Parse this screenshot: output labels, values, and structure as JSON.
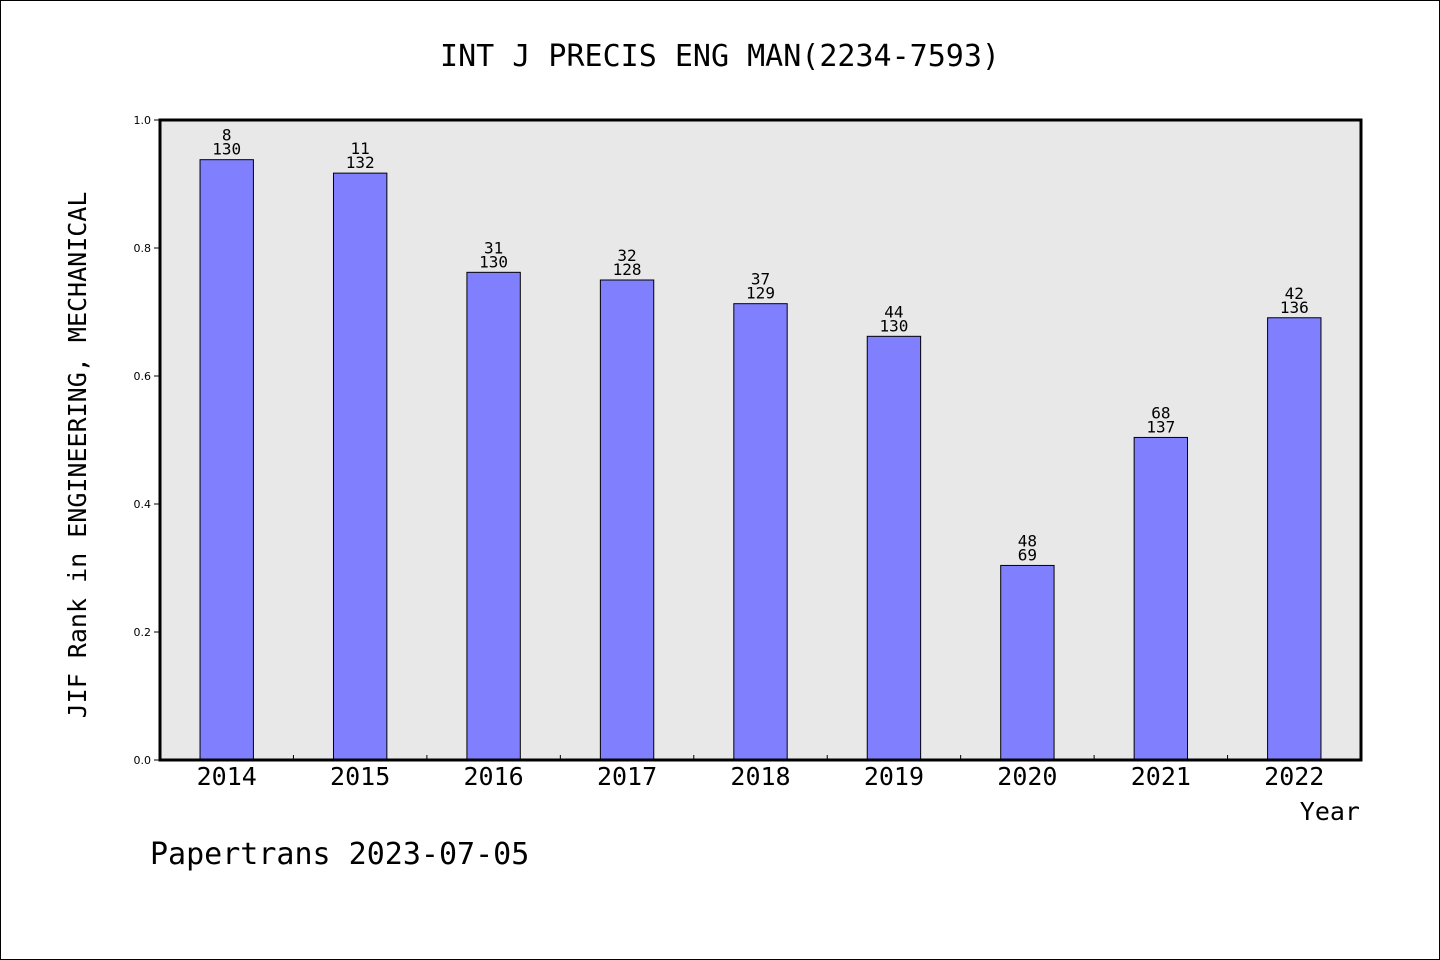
{
  "chart_data": {
    "type": "bar",
    "title": "INT J PRECIS ENG MAN(2234-7593)",
    "xlabel": "Year",
    "ylabel": "JIF Rank in ENGINEERING, MECHANICAL",
    "ylim": [
      0.0,
      1.0
    ],
    "yticks": [
      "0.0",
      "0.2",
      "0.4",
      "0.6",
      "0.8",
      "1.0"
    ],
    "categories": [
      "2014",
      "2015",
      "2016",
      "2017",
      "2018",
      "2019",
      "2020",
      "2021",
      "2022"
    ],
    "values": [
      0.938,
      0.917,
      0.762,
      0.75,
      0.713,
      0.662,
      0.304,
      0.504,
      0.691
    ],
    "ranks": [
      "8",
      "11",
      "31",
      "32",
      "37",
      "44",
      "48",
      "68",
      "42"
    ],
    "totals": [
      "130",
      "132",
      "130",
      "128",
      "129",
      "130",
      "69",
      "137",
      "136"
    ],
    "bar_color": "#8080ff",
    "plot_background": "#e8e8e8",
    "grid": false
  },
  "footer": {
    "credit": "Papertrans 2023-07-05"
  }
}
